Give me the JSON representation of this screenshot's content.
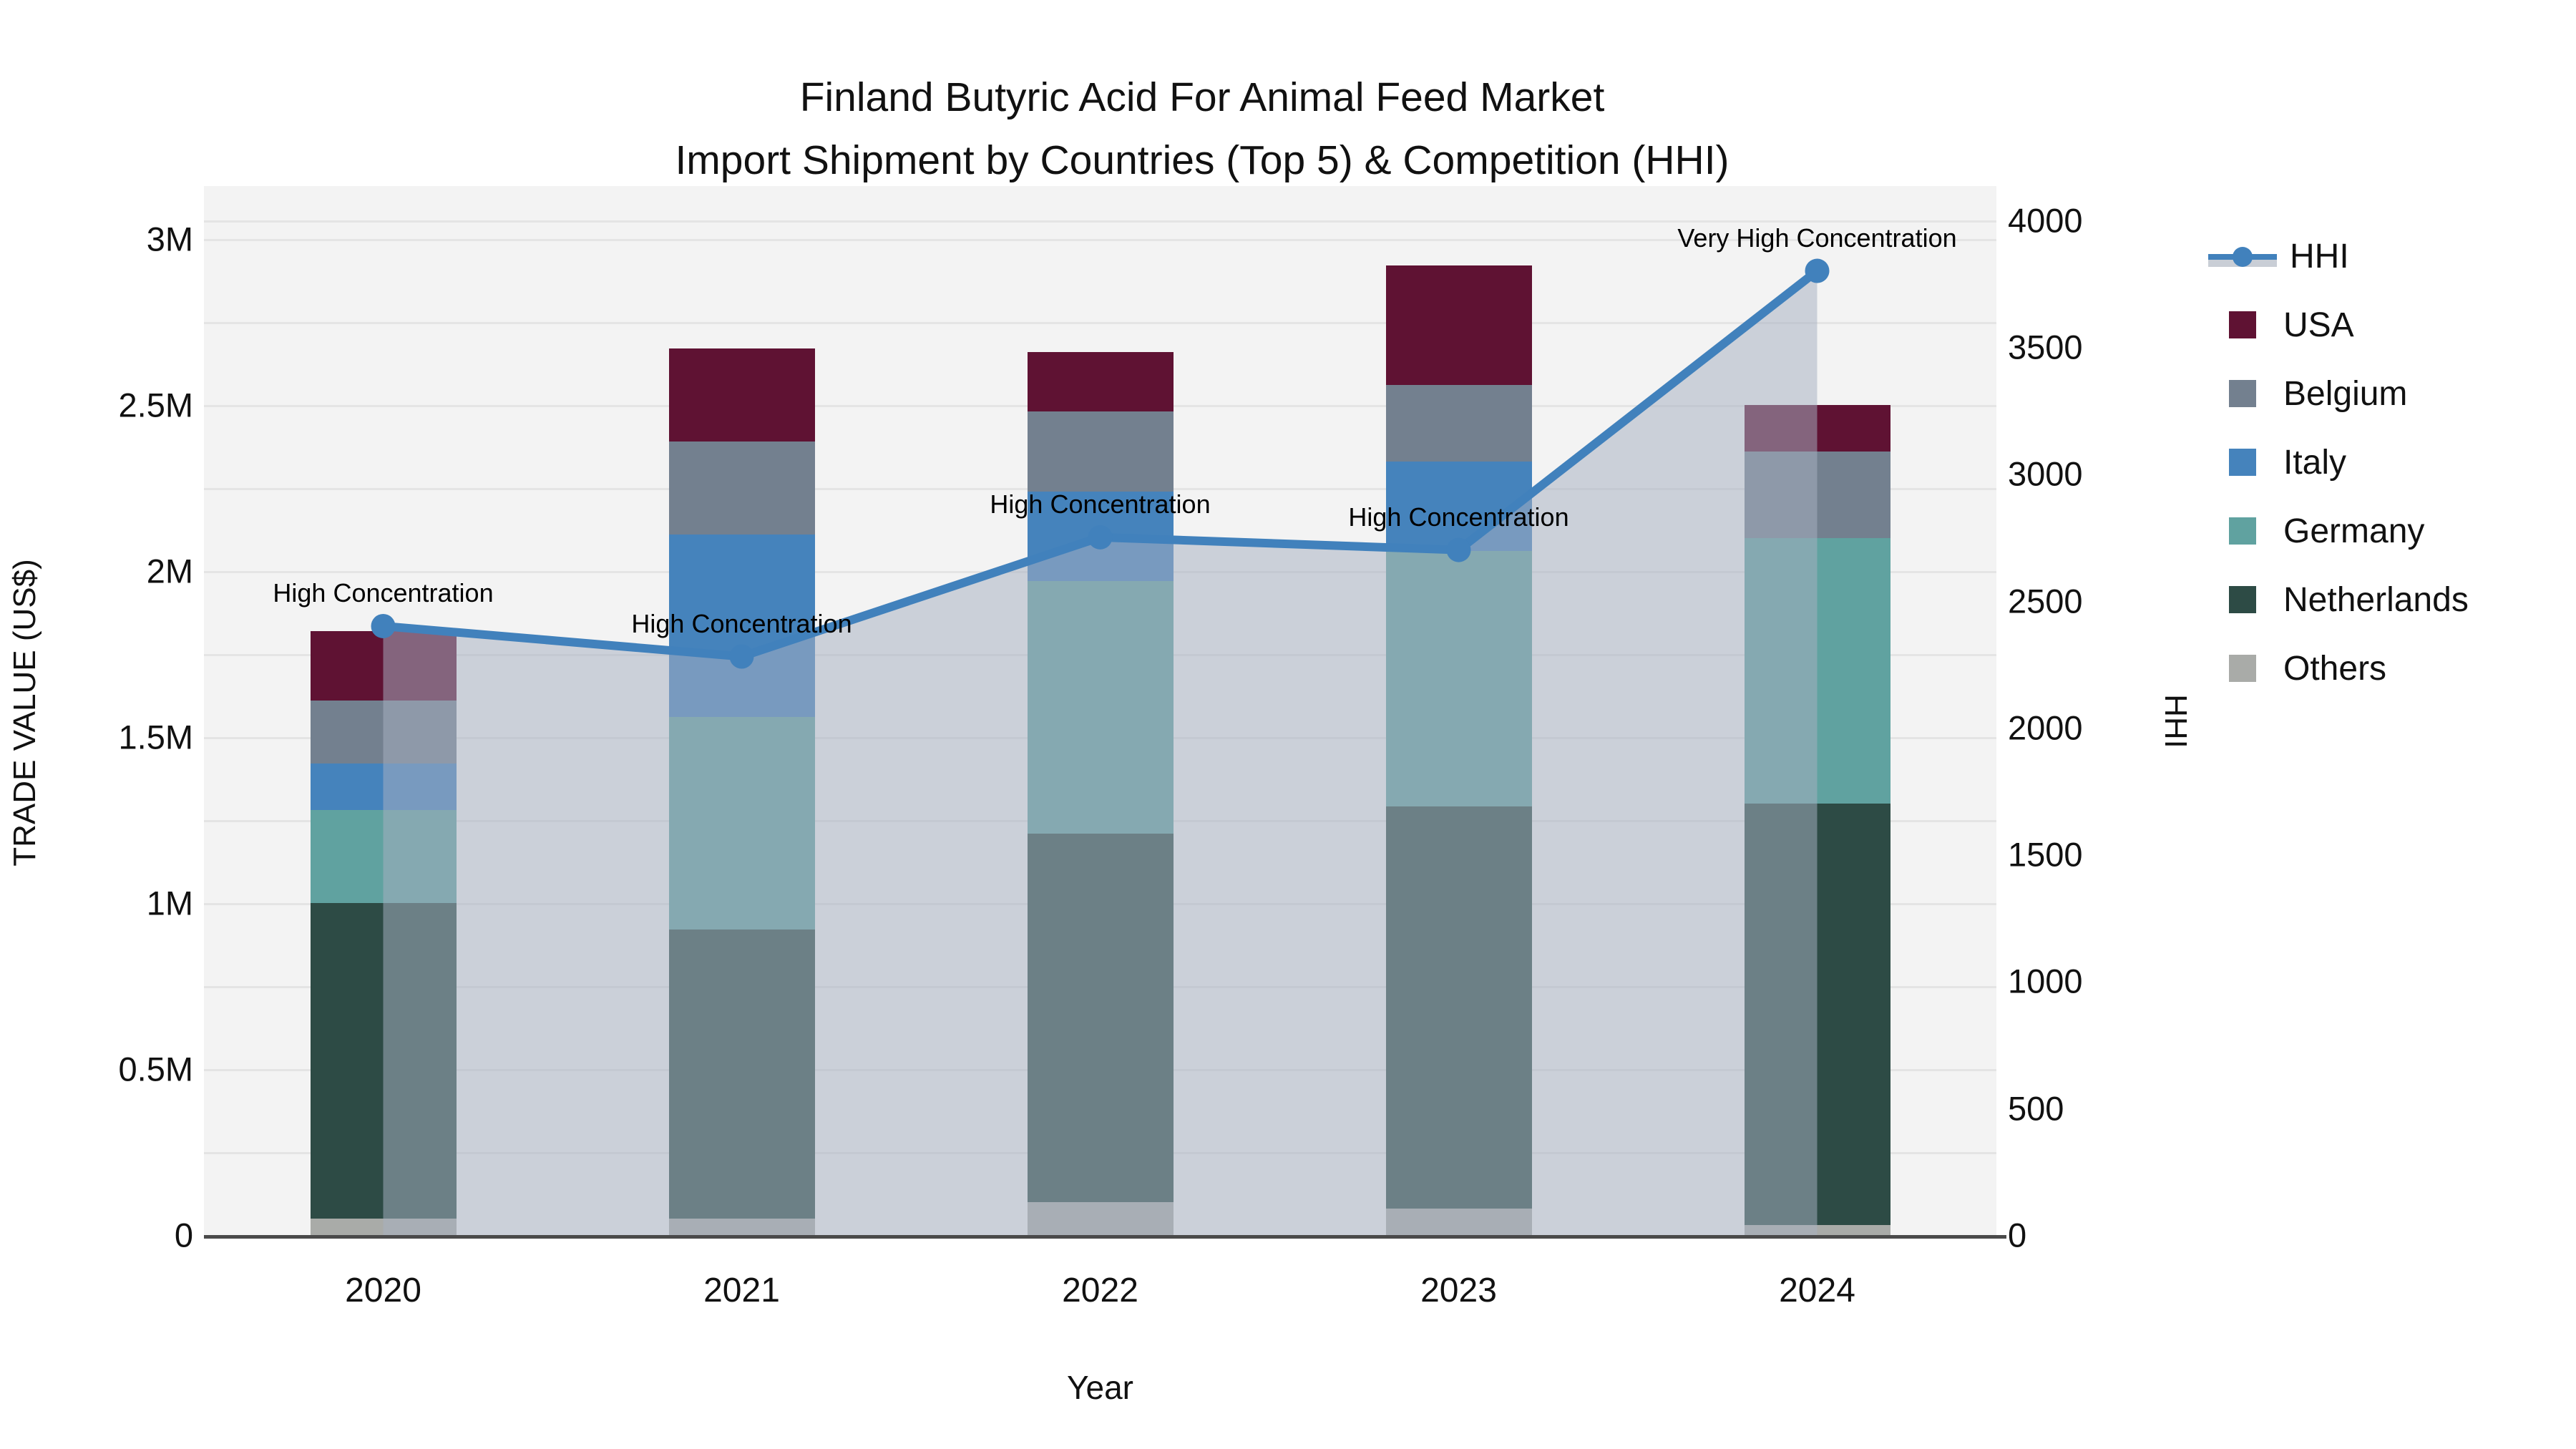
{
  "title": {
    "line1": "Finland Butyric Acid For Animal Feed Market",
    "line2": "Import Shipment by Countries (Top 5) & Competition (HHI)"
  },
  "axes": {
    "x_title": "Year",
    "y_left_title": "TRADE VALUE (US$)",
    "y_right_title": "HHI",
    "y_left_ticks": [
      {
        "label": "0",
        "value": 0
      },
      {
        "label": "0.5M",
        "value": 0.5
      },
      {
        "label": "1M",
        "value": 1.0
      },
      {
        "label": "1.5M",
        "value": 1.5
      },
      {
        "label": "2M",
        "value": 2.0
      },
      {
        "label": "2.5M",
        "value": 2.5
      },
      {
        "label": "3M",
        "value": 3.0
      }
    ],
    "y_right_ticks": [
      {
        "label": "0",
        "value": 0
      },
      {
        "label": "500",
        "value": 500
      },
      {
        "label": "1000",
        "value": 1000
      },
      {
        "label": "1500",
        "value": 1500
      },
      {
        "label": "2000",
        "value": 2000
      },
      {
        "label": "2500",
        "value": 2500
      },
      {
        "label": "3000",
        "value": 3000
      },
      {
        "label": "3500",
        "value": 3500
      },
      {
        "label": "4000",
        "value": 4000
      }
    ]
  },
  "legend": {
    "items": [
      {
        "label": "HHI",
        "type": "line",
        "color": "#4181bc"
      },
      {
        "label": "USA",
        "type": "square",
        "color": "#5f1233"
      },
      {
        "label": "Belgium",
        "type": "square",
        "color": "#73808f"
      },
      {
        "label": "Italy",
        "type": "square",
        "color": "#4583bc"
      },
      {
        "label": "Germany",
        "type": "square",
        "color": "#60a2a0"
      },
      {
        "label": "Netherlands",
        "type": "square",
        "color": "#2d4b45"
      },
      {
        "label": "Others",
        "type": "square",
        "color": "#a9aba8"
      }
    ]
  },
  "chart_data": {
    "type": "combo (stacked bar + area line)",
    "categories": [
      "2020",
      "2021",
      "2022",
      "2023",
      "2024"
    ],
    "bar_units": "US$ millions",
    "stack_order_bottom_to_top": [
      "Others",
      "Netherlands",
      "Germany",
      "Italy",
      "Belgium",
      "USA"
    ],
    "series": [
      {
        "name": "USA",
        "color": "#5f1233",
        "values": [
          0.21,
          0.28,
          0.18,
          0.36,
          0.14
        ]
      },
      {
        "name": "Belgium",
        "color": "#73808f",
        "values": [
          0.19,
          0.28,
          0.24,
          0.23,
          0.26
        ]
      },
      {
        "name": "Italy",
        "color": "#4583bc",
        "values": [
          0.14,
          0.55,
          0.27,
          0.27,
          0.0
        ]
      },
      {
        "name": "Germany",
        "color": "#60a2a0",
        "values": [
          0.28,
          0.64,
          0.76,
          0.77,
          0.8
        ]
      },
      {
        "name": "Netherlands",
        "color": "#2d4b45",
        "values": [
          0.95,
          0.87,
          1.11,
          1.21,
          1.27
        ]
      },
      {
        "name": "Others",
        "color": "#a9aba8",
        "values": [
          0.05,
          0.05,
          0.1,
          0.08,
          0.03
        ]
      }
    ],
    "bar_totals": [
      1.82,
      2.67,
      2.66,
      2.92,
      2.5
    ],
    "line_series": {
      "name": "HHI",
      "values": [
        2400,
        2280,
        2750,
        2700,
        3800
      ],
      "color": "#4181bc",
      "area_fill": "rgba(166,176,193,0.52)"
    },
    "annotations": [
      {
        "category": "2020",
        "text": "High Concentration"
      },
      {
        "category": "2021",
        "text": "High Concentration"
      },
      {
        "category": "2022",
        "text": "High Concentration"
      },
      {
        "category": "2023",
        "text": "High Concentration"
      },
      {
        "category": "2024",
        "text": "Very High Concentration"
      }
    ],
    "ylim_left_moneys": [
      0,
      3.16
    ],
    "ylim_right_hhi": [
      0,
      4134
    ],
    "grid": "horizontal, every 0.25M",
    "legend_position": "right"
  }
}
